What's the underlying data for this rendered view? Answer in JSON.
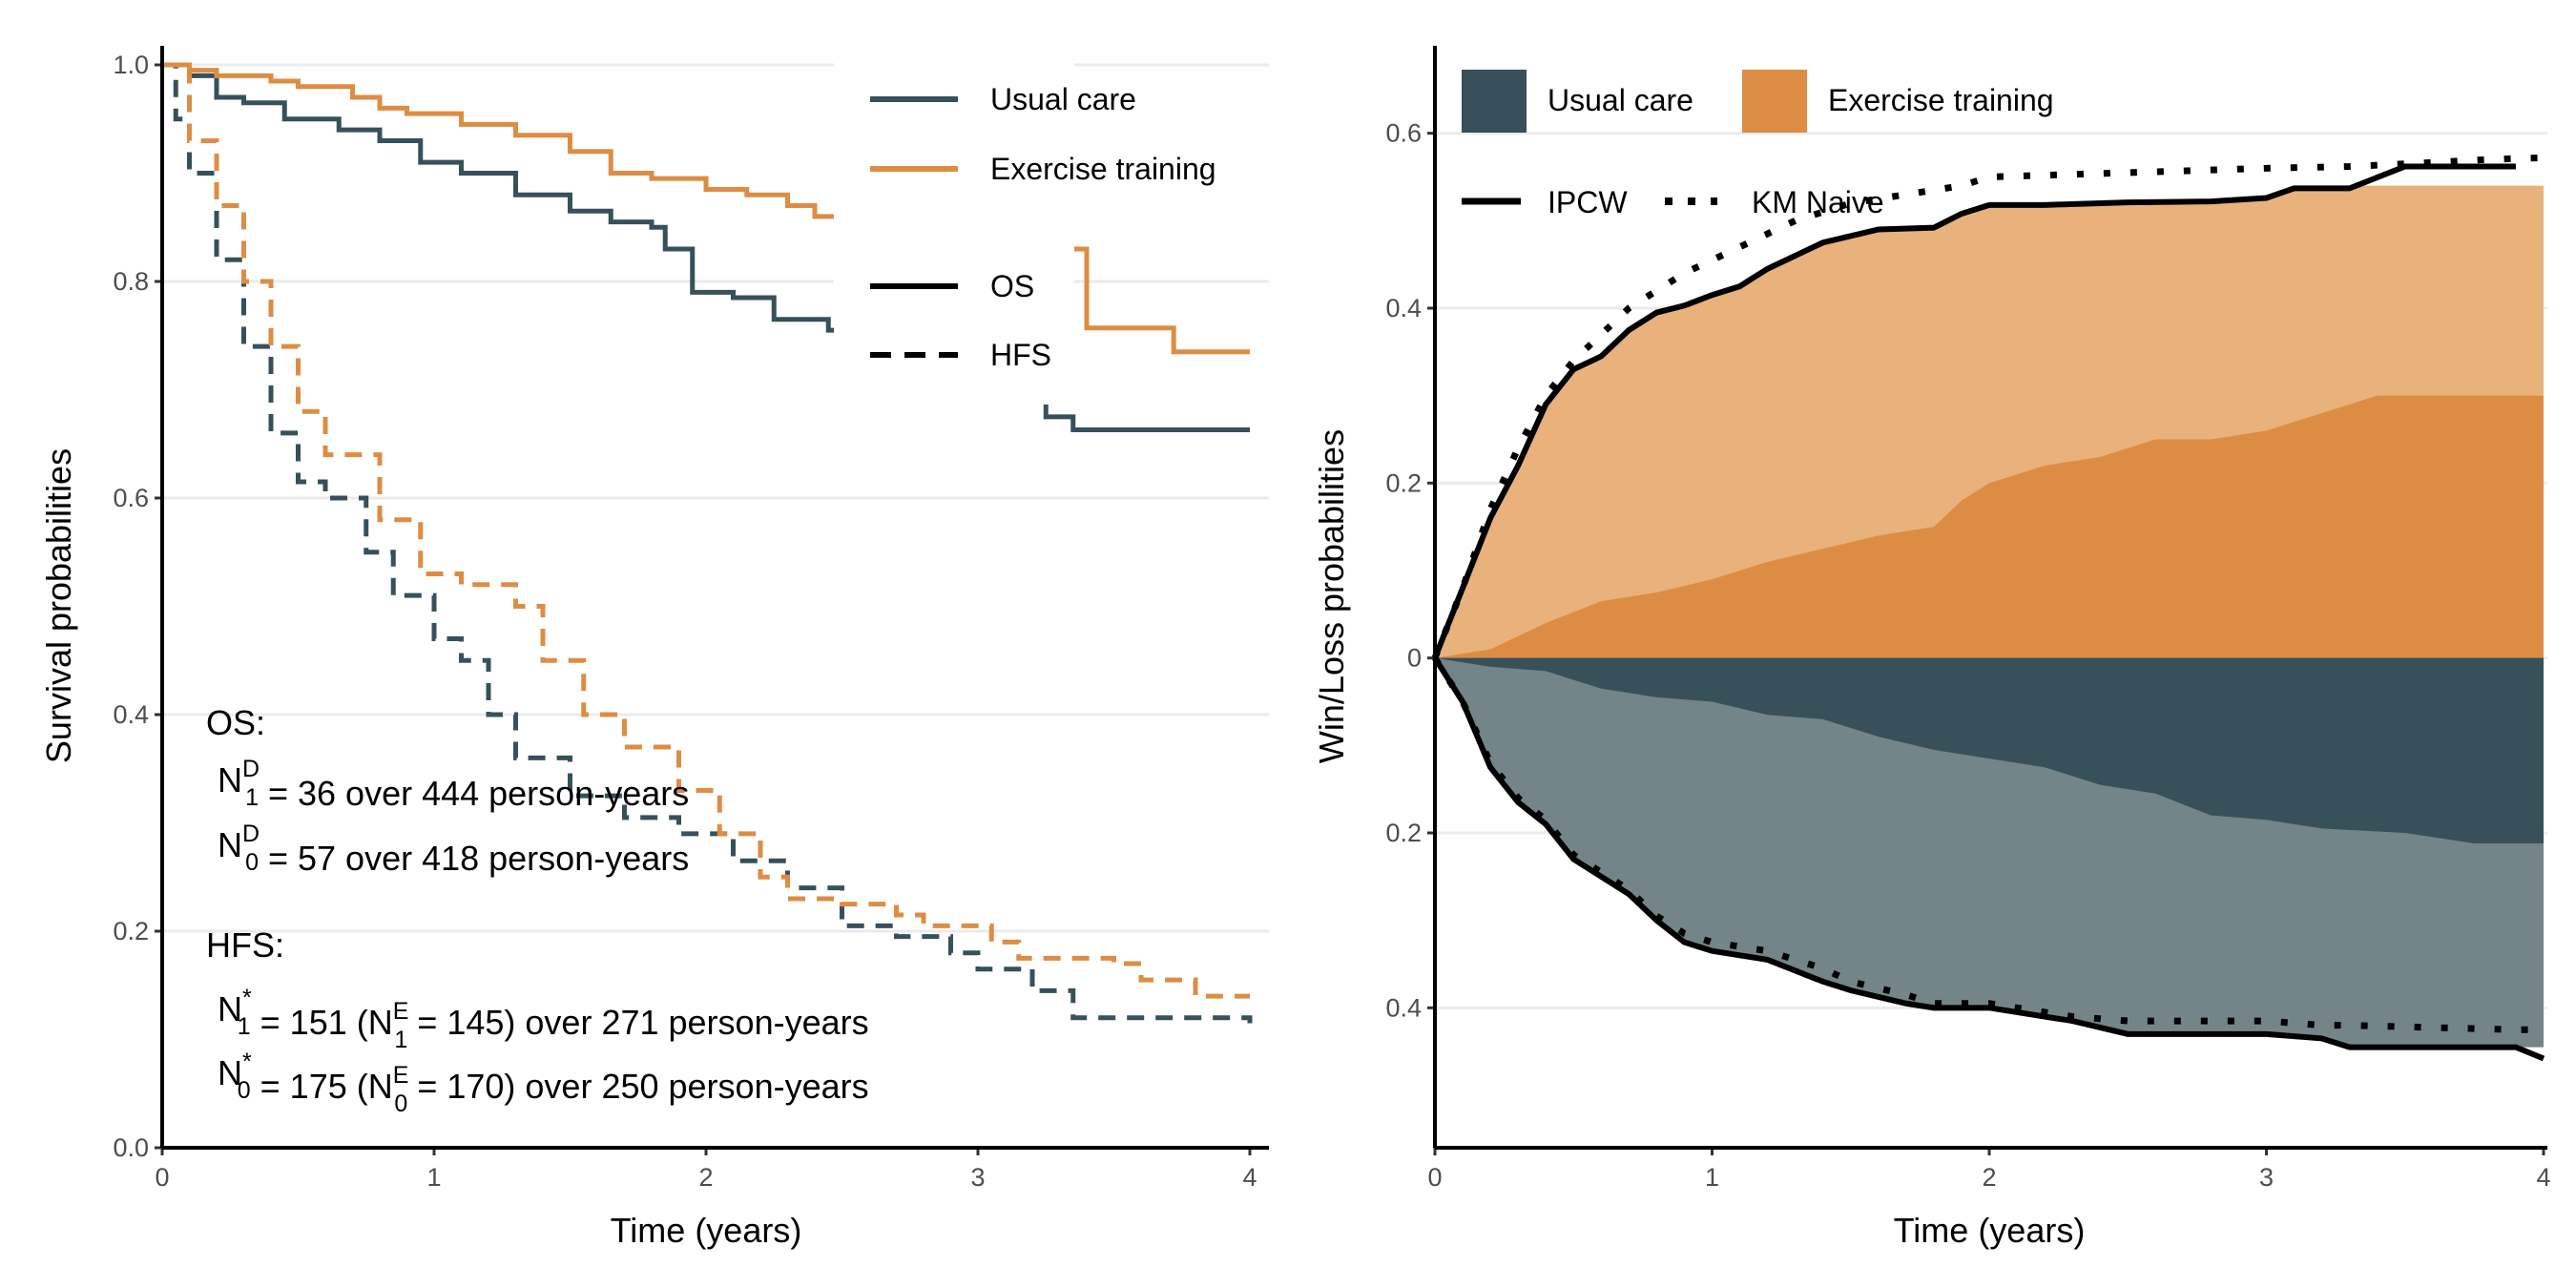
{
  "colors": {
    "usual_care": "#37505a",
    "exercise_training": "#dd8d43",
    "exercise_light": "#e9b27c",
    "usual_light": "#748589",
    "grid": "#ebebeb"
  },
  "chart_data": [
    {
      "type": "line",
      "step": true,
      "xlabel": "Time (years)",
      "ylabel": "Survival probabilities",
      "xlim": [
        0,
        4
      ],
      "ylim": [
        0,
        1
      ],
      "xticks": [
        "0",
        "1",
        "2",
        "3",
        "4"
      ],
      "yticks": [
        "0.0",
        "0.2",
        "0.4",
        "0.6",
        "0.8",
        "1.0"
      ],
      "grid": "horizontal major",
      "legend": {
        "placement": "top-right",
        "groups": [
          "Usual care",
          "Exercise training"
        ],
        "linetypes": [
          "OS",
          "HFS"
        ]
      },
      "series": [
        {
          "group": "Usual care",
          "endpoint": "OS",
          "linetype": "solid",
          "x": [
            0,
            0.1,
            0.2,
            0.3,
            0.45,
            0.65,
            0.8,
            0.95,
            1.1,
            1.3,
            1.5,
            1.65,
            1.8,
            1.85,
            1.95,
            2.1,
            2.25,
            2.45,
            3.25,
            3.35,
            4.0
          ],
          "y": [
            1,
            0.99,
            0.97,
            0.965,
            0.95,
            0.94,
            0.93,
            0.91,
            0.9,
            0.88,
            0.865,
            0.855,
            0.85,
            0.83,
            0.79,
            0.785,
            0.765,
            0.755,
            0.675,
            0.663,
            0.663
          ]
        },
        {
          "group": "Exercise training",
          "endpoint": "OS",
          "linetype": "solid",
          "x": [
            0,
            0.1,
            0.2,
            0.4,
            0.5,
            0.7,
            0.8,
            0.9,
            1.1,
            1.3,
            1.5,
            1.65,
            1.8,
            2.0,
            2.15,
            2.3,
            2.4,
            2.5,
            2.6,
            3.4,
            3.72,
            4.0
          ],
          "y": [
            1,
            0.995,
            0.99,
            0.985,
            0.98,
            0.97,
            0.96,
            0.955,
            0.945,
            0.935,
            0.92,
            0.9,
            0.895,
            0.885,
            0.88,
            0.87,
            0.86,
            0.845,
            0.83,
            0.757,
            0.735,
            0.735
          ]
        },
        {
          "group": "Usual care",
          "endpoint": "HFS",
          "linetype": "dashed",
          "x": [
            0,
            0.05,
            0.1,
            0.2,
            0.3,
            0.4,
            0.5,
            0.6,
            0.75,
            0.85,
            1.0,
            1.1,
            1.2,
            1.3,
            1.5,
            1.7,
            1.9,
            2.1,
            2.3,
            2.5,
            2.7,
            2.9,
            3.0,
            3.2,
            3.35,
            4.0
          ],
          "y": [
            1,
            0.95,
            0.9,
            0.82,
            0.74,
            0.66,
            0.615,
            0.6,
            0.55,
            0.51,
            0.47,
            0.45,
            0.4,
            0.36,
            0.325,
            0.305,
            0.29,
            0.265,
            0.24,
            0.205,
            0.195,
            0.18,
            0.165,
            0.145,
            0.12,
            0.115
          ]
        },
        {
          "group": "Exercise training",
          "endpoint": "HFS",
          "linetype": "dashed",
          "x": [
            0,
            0.1,
            0.2,
            0.3,
            0.4,
            0.5,
            0.6,
            0.8,
            0.95,
            1.1,
            1.3,
            1.4,
            1.55,
            1.7,
            1.9,
            2.05,
            2.2,
            2.3,
            2.5,
            2.7,
            2.8,
            3.05,
            3.15,
            3.5,
            3.6,
            3.8,
            4.0
          ],
          "y": [
            1,
            0.93,
            0.87,
            0.8,
            0.74,
            0.68,
            0.64,
            0.58,
            0.53,
            0.52,
            0.5,
            0.45,
            0.4,
            0.37,
            0.33,
            0.29,
            0.25,
            0.23,
            0.225,
            0.215,
            0.205,
            0.19,
            0.175,
            0.17,
            0.155,
            0.14,
            0.14
          ]
        }
      ],
      "annotations": {
        "os_header": "OS:",
        "os_lines": [
          {
            "base": "N",
            "sub": "1",
            "sup": "D",
            "rest": " = 36 over 444 person-years"
          },
          {
            "base": "N",
            "sub": "0",
            "sup": "D",
            "rest": " = 57 over 418 person-years"
          }
        ],
        "hfs_header": "HFS:",
        "hfs_lines": [
          {
            "base": "N",
            "sub": "1",
            "sup": "*",
            "mid": " = 151 (N",
            "sub2": "1",
            "sup2": "E",
            "rest": " = 145) over 271 person-years"
          },
          {
            "base": "N",
            "sub": "0",
            "sup": "*",
            "mid": " = 175 (N",
            "sub2": "0",
            "sup2": "E",
            "rest": " = 170) over 250 person-years"
          }
        ]
      }
    },
    {
      "type": "area",
      "xlabel": "Time (years)",
      "ylabel": "Win/Loss probabilities",
      "xlim": [
        0,
        4
      ],
      "ylim": [
        -0.56,
        0.7
      ],
      "xticks": [
        "0",
        "1",
        "2",
        "3",
        "4"
      ],
      "yticks": [
        {
          "value": 0.6,
          "label": "0.6"
        },
        {
          "value": 0.4,
          "label": "0.4"
        },
        {
          "value": 0.2,
          "label": "0.2"
        },
        {
          "value": 0,
          "label": "0"
        },
        {
          "value": -0.2,
          "label": "0.2"
        },
        {
          "value": -0.4,
          "label": "0.4"
        }
      ],
      "grid": "horizontal major",
      "legend": {
        "placement": "top-left",
        "fills": [
          "Usual care",
          "Exercise training"
        ],
        "lines": [
          "IPCW",
          "KM Naive"
        ]
      },
      "areas": {
        "exercise_total": {
          "x": [
            0,
            0.1,
            0.2,
            0.3,
            0.4,
            0.5,
            0.6,
            0.7,
            0.8,
            0.9,
            1.0,
            1.1,
            1.2,
            1.4,
            1.6,
            1.8,
            1.9,
            2.0,
            2.2,
            2.5,
            2.8,
            3.0,
            3.1,
            3.3,
            4.0
          ],
          "y": [
            0,
            0.08,
            0.16,
            0.22,
            0.29,
            0.33,
            0.345,
            0.375,
            0.395,
            0.403,
            0.415,
            0.425,
            0.445,
            0.475,
            0.49,
            0.492,
            0.508,
            0.518,
            0.518,
            0.521,
            0.522,
            0.526,
            0.537,
            0.54,
            0.54
          ]
        },
        "exercise_dark": {
          "x": [
            0,
            0.2,
            0.4,
            0.6,
            0.8,
            1.0,
            1.2,
            1.4,
            1.6,
            1.8,
            1.9,
            2.0,
            2.2,
            2.4,
            2.6,
            2.8,
            3.0,
            3.2,
            3.4,
            4.0
          ],
          "y": [
            0,
            0.01,
            0.04,
            0.065,
            0.075,
            0.09,
            0.11,
            0.125,
            0.14,
            0.15,
            0.18,
            0.2,
            0.22,
            0.23,
            0.25,
            0.25,
            0.26,
            0.28,
            0.3,
            0.3
          ]
        },
        "usual_total": {
          "x": [
            0,
            0.1,
            0.2,
            0.3,
            0.4,
            0.5,
            0.6,
            0.7,
            0.8,
            0.9,
            1.0,
            1.2,
            1.4,
            1.5,
            1.7,
            1.8,
            2.0,
            2.3,
            2.5,
            3.0,
            3.2,
            3.3,
            4.0
          ],
          "y": [
            0,
            -0.05,
            -0.125,
            -0.165,
            -0.19,
            -0.23,
            -0.25,
            -0.27,
            -0.3,
            -0.325,
            -0.335,
            -0.345,
            -0.37,
            -0.38,
            -0.395,
            -0.4,
            -0.4,
            -0.415,
            -0.43,
            -0.43,
            -0.435,
            -0.445,
            -0.445
          ]
        },
        "usual_dark": {
          "x": [
            0,
            0.2,
            0.4,
            0.6,
            0.8,
            1.0,
            1.2,
            1.4,
            1.6,
            1.8,
            2.0,
            2.2,
            2.4,
            2.6,
            2.8,
            3.0,
            3.2,
            3.5,
            3.75,
            4.0
          ],
          "y": [
            0,
            -0.01,
            -0.015,
            -0.035,
            -0.045,
            -0.05,
            -0.065,
            -0.07,
            -0.09,
            -0.105,
            -0.115,
            -0.125,
            -0.145,
            -0.155,
            -0.18,
            -0.185,
            -0.195,
            -0.2,
            -0.212,
            -0.212
          ]
        }
      },
      "series": [
        {
          "name": "IPCW",
          "part": "win",
          "linetype": "solid",
          "x": [
            0,
            0.1,
            0.2,
            0.3,
            0.4,
            0.5,
            0.6,
            0.7,
            0.8,
            0.9,
            1.0,
            1.1,
            1.2,
            1.4,
            1.6,
            1.8,
            1.9,
            2.0,
            2.2,
            2.5,
            2.8,
            3.0,
            3.1,
            3.3,
            3.5,
            3.9
          ],
          "y": [
            0,
            0.08,
            0.16,
            0.22,
            0.29,
            0.33,
            0.345,
            0.375,
            0.395,
            0.403,
            0.415,
            0.425,
            0.445,
            0.475,
            0.49,
            0.492,
            0.508,
            0.518,
            0.518,
            0.521,
            0.522,
            0.526,
            0.537,
            0.537,
            0.562,
            0.562
          ]
        },
        {
          "name": "KM Naive",
          "part": "win",
          "linetype": "dotted",
          "x": [
            0,
            0.1,
            0.2,
            0.3,
            0.4,
            0.5,
            0.6,
            0.7,
            0.8,
            0.9,
            1.0,
            1.1,
            1.3,
            1.5,
            1.7,
            1.9,
            2.0,
            2.5,
            3.0,
            3.3,
            3.5,
            3.8,
            4.0
          ],
          "y": [
            0,
            0.08,
            0.17,
            0.24,
            0.3,
            0.34,
            0.37,
            0.4,
            0.42,
            0.44,
            0.455,
            0.47,
            0.5,
            0.52,
            0.53,
            0.54,
            0.55,
            0.555,
            0.56,
            0.562,
            0.565,
            0.57,
            0.572
          ]
        },
        {
          "name": "IPCW",
          "part": "loss",
          "linetype": "solid",
          "x": [
            0,
            0.1,
            0.2,
            0.3,
            0.4,
            0.5,
            0.6,
            0.7,
            0.8,
            0.9,
            1.0,
            1.2,
            1.4,
            1.5,
            1.7,
            1.8,
            2.0,
            2.3,
            2.5,
            3.0,
            3.2,
            3.3,
            3.9,
            4.0
          ],
          "y": [
            0,
            -0.05,
            -0.125,
            -0.165,
            -0.19,
            -0.23,
            -0.25,
            -0.27,
            -0.3,
            -0.325,
            -0.335,
            -0.345,
            -0.37,
            -0.38,
            -0.395,
            -0.4,
            -0.4,
            -0.415,
            -0.43,
            -0.43,
            -0.435,
            -0.445,
            -0.445,
            -0.458
          ]
        },
        {
          "name": "KM Naive",
          "part": "loss",
          "linetype": "dotted",
          "x": [
            0,
            0.1,
            0.2,
            0.3,
            0.4,
            0.5,
            0.6,
            0.7,
            0.8,
            0.9,
            1.0,
            1.2,
            1.4,
            1.5,
            1.7,
            1.8,
            2.0,
            2.3,
            2.5,
            3.0,
            3.2,
            3.3,
            3.9,
            4.0
          ],
          "y": [
            0,
            -0.05,
            -0.12,
            -0.16,
            -0.185,
            -0.225,
            -0.245,
            -0.265,
            -0.295,
            -0.315,
            -0.325,
            -0.335,
            -0.355,
            -0.37,
            -0.385,
            -0.395,
            -0.395,
            -0.41,
            -0.415,
            -0.415,
            -0.42,
            -0.42,
            -0.425,
            -0.425
          ]
        }
      ]
    }
  ]
}
